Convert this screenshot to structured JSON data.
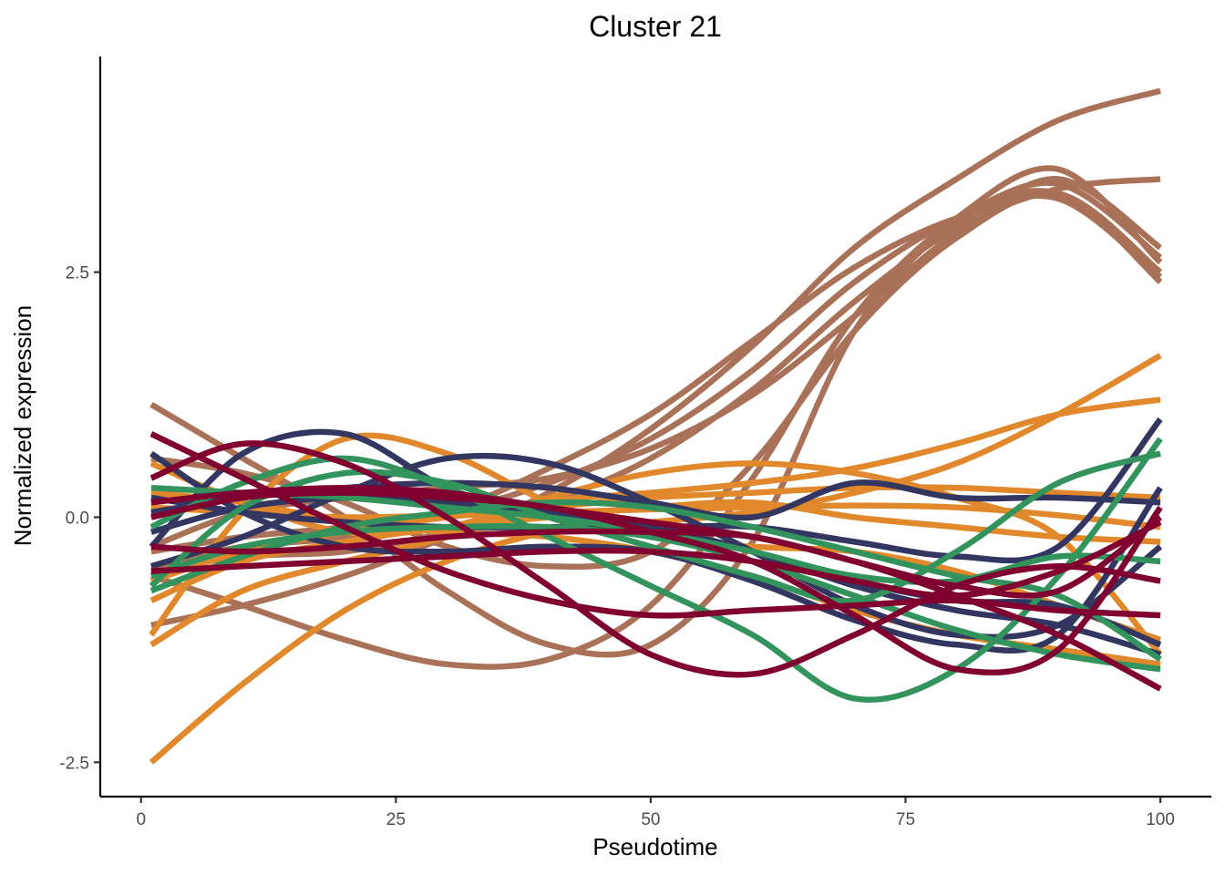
{
  "chart_data": {
    "type": "line",
    "title": "Cluster 21",
    "xlabel": "Pseudotime",
    "ylabel": "Normalized expression",
    "xlim": [
      -4,
      105
    ],
    "ylim": [
      -2.85,
      4.7
    ],
    "x_ticks": [
      0,
      25,
      50,
      75,
      100
    ],
    "x_tick_labels": [
      "0",
      "25",
      "50",
      "75",
      "100"
    ],
    "y_ticks": [
      -2.5,
      0.0,
      2.5
    ],
    "y_tick_labels": [
      "-2.5",
      "0.0",
      "2.5"
    ],
    "grid": false,
    "legend": "none",
    "colors": {
      "brown": "#a97157",
      "orange": "#e0882b",
      "navy": "#323660",
      "green": "#33935d",
      "crimson": "#800030"
    },
    "series": [
      {
        "group": "brown",
        "color": "#a97157",
        "x": [
          1,
          10,
          20,
          30,
          40,
          50,
          60,
          70,
          80,
          90,
          100
        ],
        "y": [
          -1.1,
          -0.9,
          -0.6,
          -0.2,
          0.25,
          0.9,
          1.75,
          2.75,
          3.45,
          4.05,
          4.35
        ]
      },
      {
        "group": "brown",
        "color": "#a97157",
        "x": [
          1,
          10,
          20,
          30,
          40,
          50,
          60,
          70,
          80,
          90,
          100
        ],
        "y": [
          -0.55,
          -0.4,
          -0.35,
          -0.15,
          0.15,
          0.6,
          1.3,
          2.2,
          2.95,
          3.35,
          3.45
        ]
      },
      {
        "group": "brown",
        "color": "#a97157",
        "x": [
          1,
          10,
          20,
          30,
          40,
          50,
          60,
          70,
          80,
          90,
          100
        ],
        "y": [
          -0.5,
          -0.3,
          -0.2,
          0.05,
          0.5,
          1.05,
          1.8,
          2.55,
          3.05,
          3.25,
          2.45
        ]
      },
      {
        "group": "brown",
        "color": "#a97157",
        "x": [
          1,
          10,
          20,
          30,
          40,
          50,
          60,
          70,
          80,
          90,
          100
        ],
        "y": [
          -0.35,
          -0.2,
          -0.1,
          0.05,
          0.35,
          0.8,
          1.5,
          2.4,
          3.05,
          3.4,
          2.65
        ]
      },
      {
        "group": "brown",
        "color": "#a97157",
        "x": [
          1,
          10,
          20,
          30,
          40,
          50,
          60,
          70,
          80,
          90,
          100
        ],
        "y": [
          -0.3,
          0.05,
          0.2,
          0.3,
          0.4,
          0.7,
          1.25,
          2.05,
          2.9,
          3.45,
          2.75
        ]
      },
      {
        "group": "brown",
        "color": "#a97157",
        "x": [
          1,
          10,
          20,
          30,
          40,
          50,
          60,
          70,
          80,
          90,
          100
        ],
        "y": [
          1.15,
          0.6,
          0.0,
          -0.75,
          -1.3,
          -1.3,
          -0.25,
          1.9,
          3.0,
          3.3,
          2.4
        ]
      },
      {
        "group": "brown",
        "color": "#a97157",
        "x": [
          1,
          10,
          20,
          30,
          40,
          50,
          60,
          70,
          80,
          90,
          100
        ],
        "y": [
          -0.6,
          -0.9,
          -1.25,
          -1.5,
          -1.45,
          -0.9,
          0.4,
          2.05,
          3.05,
          3.55,
          2.6
        ]
      },
      {
        "group": "brown",
        "color": "#a97157",
        "x": [
          1,
          10,
          20,
          30,
          40,
          50,
          60,
          70,
          80,
          90,
          100
        ],
        "y": [
          0.6,
          0.45,
          0.15,
          -0.3,
          -0.5,
          -0.35,
          0.55,
          1.9,
          2.85,
          3.3,
          2.5
        ]
      },
      {
        "group": "orange",
        "color": "#e0882b",
        "x": [
          1,
          10,
          20,
          30,
          40,
          50,
          60,
          70,
          80,
          90,
          100
        ],
        "y": [
          -2.5,
          -1.7,
          -0.95,
          -0.45,
          -0.15,
          -0.05,
          0.05,
          0.25,
          0.55,
          1.05,
          1.65
        ]
      },
      {
        "group": "orange",
        "color": "#e0882b",
        "x": [
          1,
          10,
          20,
          30,
          40,
          50,
          60,
          70,
          80,
          90,
          100
        ],
        "y": [
          -1.3,
          -0.75,
          -0.45,
          -0.2,
          0.15,
          0.25,
          0.35,
          0.5,
          0.75,
          1.05,
          1.2
        ]
      },
      {
        "group": "orange",
        "color": "#e0882b",
        "x": [
          1,
          10,
          20,
          30,
          40,
          50,
          60,
          70,
          80,
          90,
          100
        ],
        "y": [
          0.55,
          0.15,
          -0.15,
          -0.1,
          0.2,
          0.45,
          0.55,
          0.45,
          0.2,
          -0.2,
          -1.4
        ]
      },
      {
        "group": "orange",
        "color": "#e0882b",
        "x": [
          1,
          10,
          20,
          30,
          40,
          50,
          60,
          70,
          80,
          90,
          100
        ],
        "y": [
          -1.2,
          0.05,
          0.8,
          0.65,
          0.15,
          -0.2,
          -0.3,
          -0.35,
          -0.55,
          -0.9,
          -1.25
        ]
      },
      {
        "group": "orange",
        "color": "#e0882b",
        "x": [
          1,
          10,
          20,
          30,
          40,
          50,
          60,
          70,
          80,
          90,
          100
        ],
        "y": [
          -0.65,
          -0.35,
          -0.15,
          0.0,
          0.1,
          0.2,
          0.25,
          0.3,
          0.3,
          0.25,
          0.2
        ]
      },
      {
        "group": "orange",
        "color": "#e0882b",
        "x": [
          1,
          10,
          20,
          30,
          40,
          50,
          60,
          70,
          80,
          90,
          100
        ],
        "y": [
          0.25,
          0.15,
          -0.05,
          -0.15,
          -0.2,
          -0.35,
          -0.6,
          -0.95,
          -1.2,
          -1.35,
          -1.5
        ]
      },
      {
        "group": "orange",
        "color": "#e0882b",
        "x": [
          1,
          10,
          20,
          30,
          40,
          50,
          60,
          70,
          80,
          90,
          100
        ],
        "y": [
          0.1,
          0.05,
          0.0,
          0.02,
          0.05,
          0.08,
          0.1,
          0.12,
          0.1,
          0.02,
          -0.1
        ]
      },
      {
        "group": "orange",
        "color": "#e0882b",
        "x": [
          1,
          10,
          20,
          30,
          40,
          50,
          60,
          70,
          80,
          90,
          100
        ],
        "y": [
          -0.85,
          -0.45,
          -0.25,
          -0.1,
          0.0,
          0.1,
          0.15,
          0.0,
          -0.1,
          -0.2,
          -0.25
        ]
      },
      {
        "group": "navy",
        "color": "#323660",
        "x": [
          1,
          10,
          20,
          30,
          40,
          50,
          60,
          70,
          80,
          90,
          100
        ],
        "y": [
          -0.3,
          0.65,
          0.85,
          0.3,
          0.0,
          -0.1,
          -0.35,
          -0.7,
          -0.95,
          -1.1,
          -1.4
        ]
      },
      {
        "group": "navy",
        "color": "#323660",
        "x": [
          1,
          10,
          20,
          30,
          40,
          50,
          60,
          70,
          80,
          90,
          100
        ],
        "y": [
          -0.5,
          -0.2,
          0.25,
          0.6,
          0.55,
          0.15,
          -0.35,
          -0.9,
          -1.2,
          -1.1,
          -0.3
        ]
      },
      {
        "group": "navy",
        "color": "#323660",
        "x": [
          1,
          10,
          20,
          30,
          40,
          50,
          60,
          70,
          80,
          90,
          100
        ],
        "y": [
          0.2,
          0.05,
          -0.05,
          -0.1,
          -0.1,
          -0.1,
          -0.1,
          -0.25,
          -0.4,
          -0.3,
          1.0
        ]
      },
      {
        "group": "navy",
        "color": "#323660",
        "x": [
          1,
          10,
          20,
          30,
          40,
          50,
          60,
          70,
          80,
          90,
          100
        ],
        "y": [
          0.65,
          0.05,
          -0.3,
          -0.35,
          -0.3,
          -0.35,
          -0.65,
          -1.05,
          -1.3,
          -1.2,
          0.3
        ]
      },
      {
        "group": "navy",
        "color": "#323660",
        "x": [
          1,
          10,
          20,
          30,
          40,
          50,
          60,
          70,
          80,
          90,
          100
        ],
        "y": [
          -0.15,
          0.1,
          0.2,
          0.15,
          0.05,
          -0.1,
          -0.35,
          -0.65,
          -0.85,
          -0.9,
          -1.3
        ]
      },
      {
        "group": "navy",
        "color": "#323660",
        "x": [
          1,
          10,
          20,
          30,
          40,
          50,
          60,
          70,
          80,
          90,
          100
        ],
        "y": [
          0.05,
          0.2,
          0.3,
          0.35,
          0.3,
          0.15,
          0.0,
          0.35,
          0.2,
          0.2,
          0.15
        ]
      },
      {
        "group": "green",
        "color": "#33935d",
        "x": [
          1,
          10,
          20,
          30,
          40,
          50,
          60,
          70,
          80,
          90,
          100
        ],
        "y": [
          -0.1,
          0.35,
          0.6,
          0.3,
          -0.2,
          -0.7,
          -1.2,
          -1.85,
          -1.55,
          -0.6,
          0.8
        ]
      },
      {
        "group": "green",
        "color": "#33935d",
        "x": [
          1,
          10,
          20,
          30,
          40,
          50,
          60,
          70,
          80,
          90,
          100
        ],
        "y": [
          -0.75,
          -0.4,
          -0.1,
          0.05,
          0.15,
          0.1,
          -0.1,
          -0.35,
          -0.6,
          -0.8,
          -1.45
        ]
      },
      {
        "group": "green",
        "color": "#33935d",
        "x": [
          1,
          10,
          20,
          30,
          40,
          50,
          60,
          70,
          80,
          90,
          100
        ],
        "y": [
          -0.6,
          -0.3,
          -0.15,
          -0.1,
          -0.1,
          -0.2,
          -0.45,
          -0.8,
          -1.15,
          -1.4,
          -1.55
        ]
      },
      {
        "group": "green",
        "color": "#33935d",
        "x": [
          1,
          10,
          20,
          30,
          40,
          50,
          60,
          70,
          80,
          90,
          100
        ],
        "y": [
          -0.7,
          0.1,
          0.45,
          0.35,
          0.0,
          -0.3,
          -0.6,
          -0.85,
          -0.35,
          0.35,
          0.65
        ]
      },
      {
        "group": "green",
        "color": "#33935d",
        "x": [
          1,
          10,
          20,
          30,
          40,
          50,
          60,
          70,
          80,
          90,
          100
        ],
        "y": [
          0.3,
          0.25,
          0.2,
          0.1,
          0.0,
          -0.15,
          -0.35,
          -0.6,
          -0.65,
          -0.4,
          -0.45
        ]
      },
      {
        "group": "crimson",
        "color": "#800030",
        "x": [
          1,
          10,
          20,
          30,
          40,
          50,
          60,
          70,
          80,
          90,
          100
        ],
        "y": [
          0.85,
          0.4,
          -0.1,
          -0.55,
          -0.85,
          -1.0,
          -0.95,
          -0.9,
          -0.85,
          -0.95,
          -1.0
        ]
      },
      {
        "group": "crimson",
        "color": "#800030",
        "x": [
          1,
          10,
          20,
          30,
          40,
          50,
          60,
          70,
          80,
          90,
          100
        ],
        "y": [
          0.4,
          0.75,
          0.55,
          0.0,
          -0.7,
          -1.4,
          -1.6,
          -1.2,
          -0.7,
          -0.5,
          -0.65
        ]
      },
      {
        "group": "crimson",
        "color": "#800030",
        "x": [
          1,
          10,
          20,
          30,
          40,
          50,
          60,
          70,
          80,
          90,
          100
        ],
        "y": [
          0.0,
          0.2,
          0.25,
          0.2,
          0.1,
          -0.15,
          -0.45,
          -1.0,
          -1.55,
          -1.35,
          0.1
        ]
      },
      {
        "group": "crimson",
        "color": "#800030",
        "x": [
          1,
          10,
          20,
          30,
          40,
          50,
          60,
          70,
          80,
          90,
          100
        ],
        "y": [
          -0.55,
          -0.5,
          -0.45,
          -0.4,
          -0.35,
          -0.35,
          -0.45,
          -0.65,
          -0.8,
          -0.55,
          -0.05
        ]
      },
      {
        "group": "crimson",
        "color": "#800030",
        "x": [
          1,
          10,
          20,
          30,
          40,
          50,
          60,
          70,
          80,
          90,
          100
        ],
        "y": [
          0.15,
          0.25,
          0.3,
          0.25,
          0.1,
          -0.05,
          -0.2,
          -0.45,
          -0.8,
          -1.2,
          -1.75
        ]
      },
      {
        "group": "crimson",
        "color": "#800030",
        "x": [
          1,
          10,
          20,
          30,
          40,
          50,
          60,
          70,
          80,
          90,
          100
        ],
        "y": [
          -0.3,
          -0.35,
          -0.3,
          -0.2,
          -0.15,
          -0.15,
          -0.2,
          -0.45,
          -0.7,
          -0.75,
          0.0
        ]
      }
    ]
  }
}
